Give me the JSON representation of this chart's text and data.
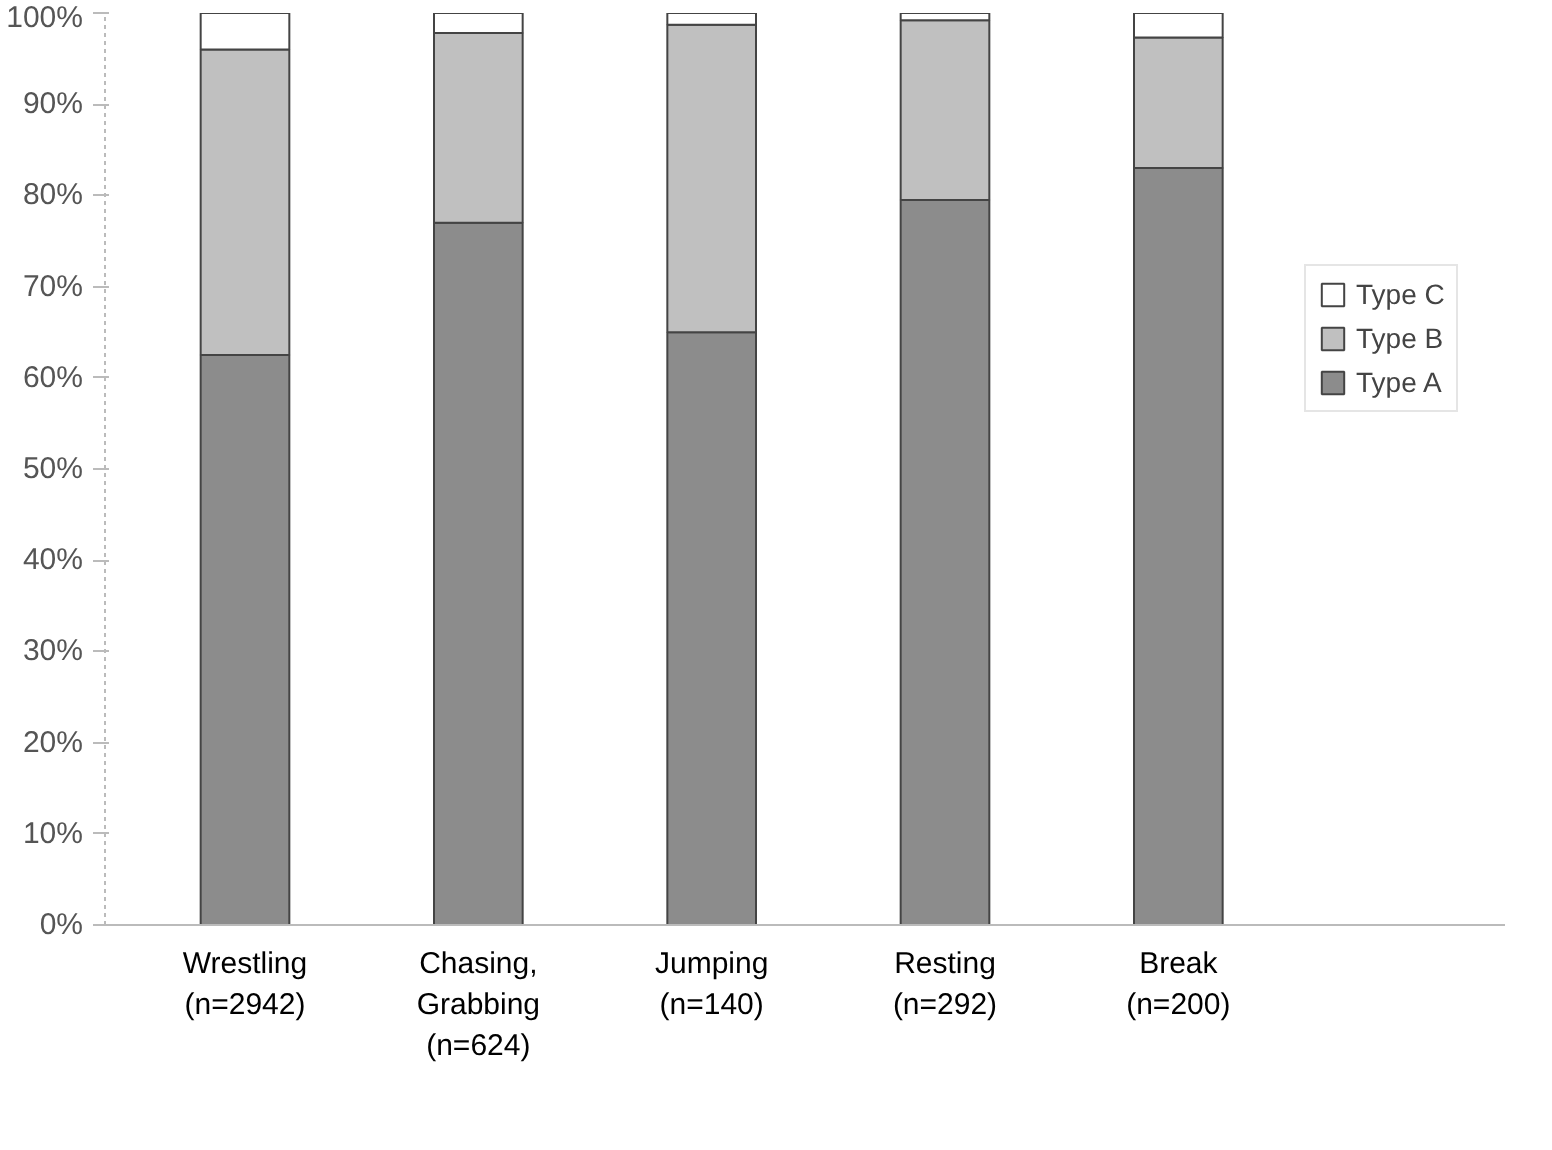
{
  "chart_data": {
    "type": "bar",
    "stacked": true,
    "categories": [
      "Wrestling\n(n=2942)",
      "Chasing,\nGrabbing\n(n=624)",
      "Jumping\n(n=140)",
      "Resting\n(n=292)",
      "Break\n(n=200)"
    ],
    "series": [
      {
        "name": "Type A",
        "color": "#8c8c8c",
        "values": [
          62.5,
          77,
          65,
          79.5,
          83
        ]
      },
      {
        "name": "Type B",
        "color": "#c0c0c0",
        "values": [
          33.5,
          20.8,
          33.7,
          19.7,
          14.3
        ]
      },
      {
        "name": "Type C",
        "color": "#ffffff",
        "values": [
          4,
          2.2,
          1.3,
          0.8,
          2.7
        ]
      }
    ],
    "ylim": [
      0,
      100
    ],
    "yticks": [
      {
        "value": 0,
        "label": "0%"
      },
      {
        "value": 10,
        "label": "10%"
      },
      {
        "value": 20,
        "label": "20%"
      },
      {
        "value": 30,
        "label": "30%"
      },
      {
        "value": 40,
        "label": "40%"
      },
      {
        "value": 50,
        "label": "50%"
      },
      {
        "value": 60,
        "label": "60%"
      },
      {
        "value": 70,
        "label": "70%"
      },
      {
        "value": 80,
        "label": "80%"
      },
      {
        "value": 90,
        "label": "90%"
      },
      {
        "value": 100,
        "label": "100%"
      }
    ],
    "grid": false,
    "legend": "right"
  }
}
